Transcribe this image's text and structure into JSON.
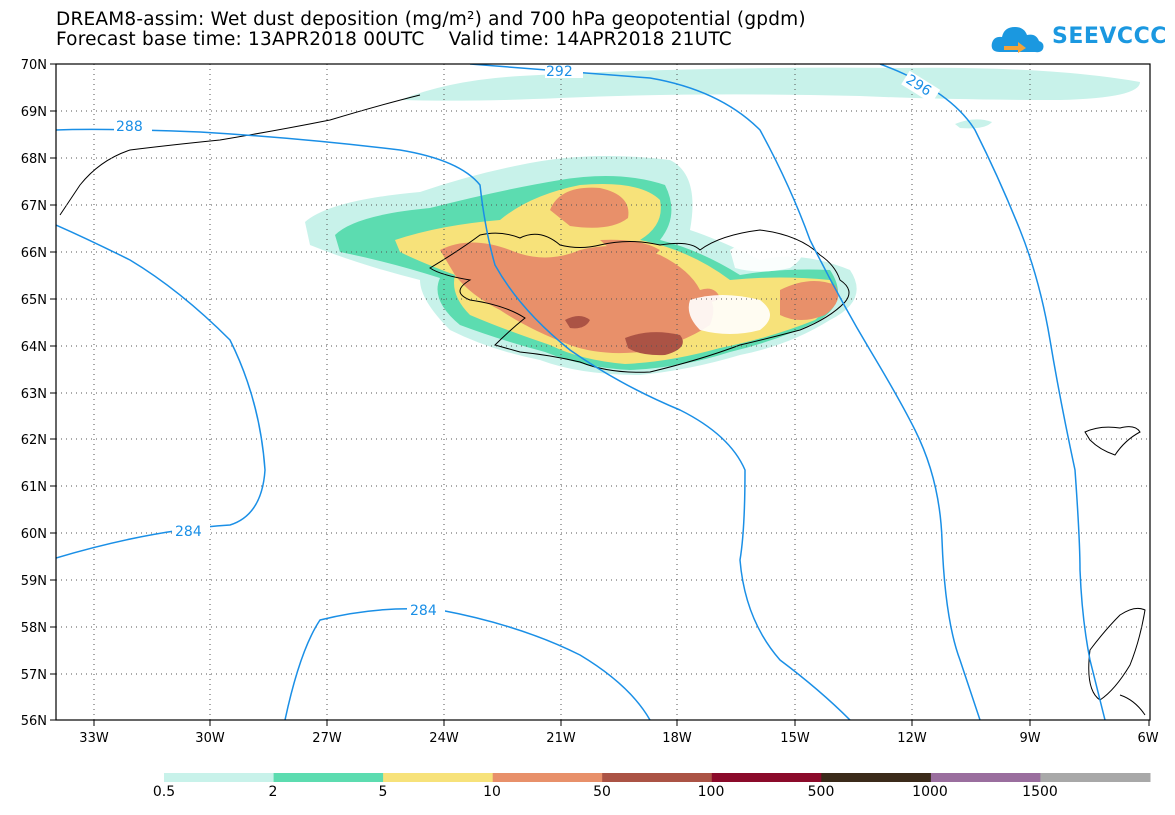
{
  "header": {
    "title_line1": "DREAM8-assim: Wet dust deposition (mg/m²) and 700 hPa geopotential (gpdm)",
    "title_line2": "Forecast base time: 13APR2018 00UTC    Valid time: 14APR2018 21UTC"
  },
  "logo": {
    "text": "SEEVCCC",
    "icon": "cloud-icon",
    "color": "#1b98e0"
  },
  "map": {
    "lat_labels": [
      "70N",
      "69N",
      "68N",
      "67N",
      "66N",
      "65N",
      "64N",
      "63N",
      "62N",
      "61N",
      "60N",
      "59N",
      "58N",
      "57N",
      "56N"
    ],
    "lon_labels": [
      "33W",
      "30W",
      "27W",
      "24W",
      "21W",
      "18W",
      "15W",
      "12W",
      "9W",
      "6W"
    ],
    "gridlines": true
  },
  "contours": {
    "color": "#1a8fe6",
    "labels": [
      "288",
      "292",
      "296",
      "284",
      "284"
    ]
  },
  "colorbar": {
    "colors": [
      "#c8f2ea",
      "#5cdcb0",
      "#f7e27a",
      "#e8906a",
      "#ab5345",
      "#8b0a2a",
      "#3b2a1a",
      "#9a6e9e",
      "#a8a8a8"
    ],
    "labels": [
      "0.5",
      "2",
      "5",
      "10",
      "50",
      "100",
      "500",
      "1000",
      "1500"
    ]
  }
}
